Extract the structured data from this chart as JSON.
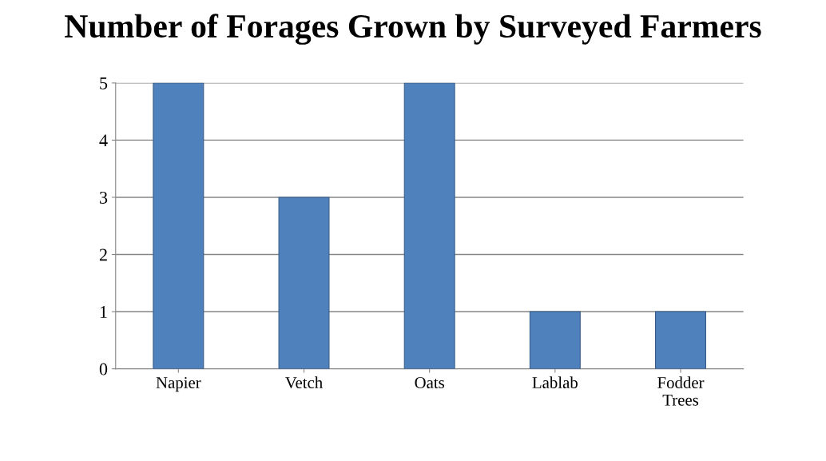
{
  "chart_data": {
    "type": "bar",
    "title": "Number of Forages Grown by Surveyed Farmers",
    "categories": [
      "Napier",
      "Vetch",
      "Oats",
      "Lablab",
      "Fodder\nTrees"
    ],
    "values": [
      5,
      3,
      5,
      1,
      1
    ],
    "color": "#4f81bd",
    "ylim": [
      0,
      5
    ],
    "yticks": [
      0,
      1,
      2,
      3,
      4,
      5
    ],
    "grid": "y"
  }
}
